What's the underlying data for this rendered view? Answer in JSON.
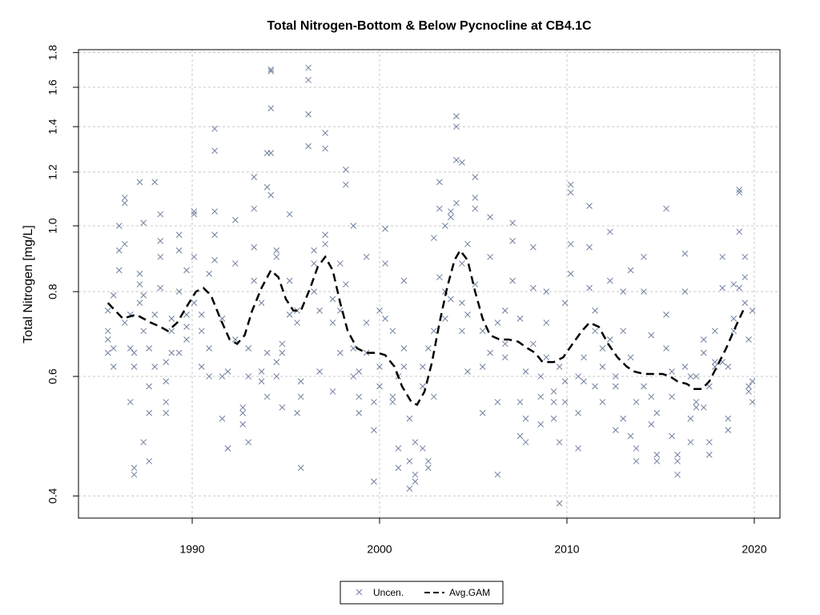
{
  "chart_data": {
    "type": "scatter",
    "title": "Total Nitrogen-Bottom & Below Pycnocline at CB4.1C",
    "ylabel": "Total Nitrogen [mg/L]",
    "log_y": true,
    "grid": true,
    "legend": "bottom",
    "xlim": [
      1983.93,
      2021.37
    ],
    "xticks": [
      1990,
      2000,
      2010,
      2020
    ],
    "ylim": [
      0.371,
      1.818
    ],
    "yticks": [
      0.4,
      0.6,
      0.8,
      {
        "value": 1,
        "label": "1.0"
      },
      1.2,
      1.4,
      1.6,
      1.8
    ],
    "series": [
      {
        "name": "Uncen.",
        "type": "scatter",
        "color": "#6e7f9e",
        "x": [
          1985.5,
          1985.5,
          1985.5,
          1985.5,
          1985.8,
          1985.8,
          1985.8,
          1986.1,
          1986.1,
          1986.1,
          1986.4,
          1986.4,
          1986.4,
          1986.4,
          1986.7,
          1986.7,
          1986.7,
          1986.9,
          1986.9,
          1986.9,
          1986.9,
          1987.2,
          1987.2,
          1987.2,
          1987.2,
          1987.4,
          1987.4,
          1987.4,
          1987.4,
          1987.7,
          1987.7,
          1987.7,
          1987.7,
          1988.0,
          1988.0,
          1988.0,
          1988.3,
          1988.3,
          1988.3,
          1988.3,
          1988.6,
          1988.6,
          1988.6,
          1988.6,
          1988.9,
          1988.9,
          1988.9,
          1989.3,
          1989.3,
          1989.3,
          1989.3,
          1989.7,
          1989.7,
          1989.7,
          1989.7,
          1990.1,
          1990.1,
          1990.1,
          1990.1,
          1990.5,
          1990.5,
          1990.5,
          1990.9,
          1990.9,
          1990.9,
          1991.2,
          1991.2,
          1991.2,
          1991.2,
          1991.2,
          1991.6,
          1991.6,
          1991.6,
          1991.9,
          1991.9,
          1991.9,
          1992.3,
          1992.3,
          1992.3,
          1992.7,
          1992.7,
          1992.7,
          1993.0,
          1993.0,
          1993.0,
          1993.3,
          1993.3,
          1993.3,
          1993.3,
          1993.7,
          1993.7,
          1993.7,
          1994.0,
          1994.0,
          1994.0,
          1994.0,
          1994.2,
          1994.2,
          1994.2,
          1994.2,
          1994.2,
          1994.5,
          1994.5,
          1994.5,
          1994.5,
          1994.8,
          1994.8,
          1994.8,
          1995.2,
          1995.2,
          1995.2,
          1995.6,
          1995.6,
          1995.6,
          1995.8,
          1995.8,
          1995.8,
          1996.2,
          1996.2,
          1996.2,
          1996.2,
          1996.5,
          1996.5,
          1996.5,
          1996.8,
          1996.8,
          1997.1,
          1997.1,
          1997.1,
          1997.1,
          1997.5,
          1997.5,
          1997.5,
          1997.9,
          1997.9,
          1997.9,
          1998.2,
          1998.2,
          1998.2,
          1998.6,
          1998.6,
          1998.6,
          1998.9,
          1998.9,
          1998.9,
          1999.3,
          1999.3,
          1999.3,
          1999.7,
          1999.7,
          1999.7,
          2000.0,
          2000.0,
          2000.0,
          2000.3,
          2000.3,
          2000.3,
          2000.7,
          2000.7,
          2000.7,
          2001.0,
          2001.0,
          2001.0,
          2001.3,
          2001.3,
          2001.3,
          2001.6,
          2001.6,
          2001.6,
          2001.9,
          2001.9,
          2001.9,
          2002.3,
          2002.3,
          2002.3,
          2002.6,
          2002.6,
          2002.6,
          2002.9,
          2002.9,
          2002.9,
          2003.2,
          2003.2,
          2003.2,
          2003.5,
          2003.5,
          2003.5,
          2003.8,
          2003.8,
          2003.8,
          2004.1,
          2004.1,
          2004.1,
          2004.1,
          2004.4,
          2004.4,
          2004.4,
          2004.4,
          2004.7,
          2004.7,
          2004.7,
          2005.1,
          2005.1,
          2005.1,
          2005.1,
          2005.5,
          2005.5,
          2005.5,
          2005.9,
          2005.9,
          2005.9,
          2006.3,
          2006.3,
          2006.3,
          2006.7,
          2006.7,
          2006.7,
          2007.1,
          2007.1,
          2007.1,
          2007.5,
          2007.5,
          2007.5,
          2007.8,
          2007.8,
          2007.8,
          2008.2,
          2008.2,
          2008.2,
          2008.6,
          2008.6,
          2008.6,
          2008.9,
          2008.9,
          2008.9,
          2009.3,
          2009.3,
          2009.3,
          2009.6,
          2009.6,
          2009.6,
          2009.9,
          2009.9,
          2009.9,
          2010.2,
          2010.2,
          2010.2,
          2010.2,
          2010.6,
          2010.6,
          2010.6,
          2010.9,
          2010.9,
          2011.2,
          2011.2,
          2011.2,
          2011.5,
          2011.5,
          2011.5,
          2011.9,
          2011.9,
          2011.9,
          2012.3,
          2012.3,
          2012.3,
          2012.6,
          2012.6,
          2012.6,
          2013.0,
          2013.0,
          2013.0,
          2013.4,
          2013.4,
          2013.4,
          2013.7,
          2013.7,
          2013.7,
          2014.1,
          2014.1,
          2014.1,
          2014.5,
          2014.5,
          2014.5,
          2014.8,
          2014.8,
          2014.8,
          2015.3,
          2015.3,
          2015.3,
          2015.6,
          2015.6,
          2015.6,
          2015.9,
          2015.9,
          2015.9,
          2016.3,
          2016.3,
          2016.3,
          2016.6,
          2016.6,
          2016.6,
          2016.9,
          2016.9,
          2016.9,
          2017.3,
          2017.3,
          2017.3,
          2017.6,
          2017.6,
          2017.6,
          2017.9,
          2017.9,
          2017.9,
          2018.3,
          2018.3,
          2018.3,
          2018.6,
          2018.6,
          2018.6,
          2018.9,
          2018.9,
          2018.9,
          2019.2,
          2019.2,
          2019.2,
          2019.2,
          2019.5,
          2019.5,
          2019.5,
          2019.7,
          2019.7,
          2019.7,
          2019.9,
          2019.9,
          2019.9
        ],
        "values": [
          0.65,
          0.68,
          0.7,
          0.75,
          0.79,
          0.66,
          0.62,
          0.86,
          1.0,
          0.92,
          1.08,
          1.1,
          0.94,
          0.72,
          0.55,
          0.66,
          0.74,
          0.43,
          0.44,
          0.62,
          0.65,
          1.16,
          0.85,
          0.82,
          0.77,
          1.01,
          0.79,
          0.48,
          0.7,
          0.53,
          0.58,
          0.45,
          0.66,
          0.74,
          1.16,
          0.62,
          1.04,
          0.95,
          0.9,
          0.81,
          0.63,
          0.59,
          0.55,
          0.53,
          0.65,
          0.73,
          0.7,
          0.97,
          0.92,
          0.8,
          0.65,
          0.71,
          0.74,
          0.68,
          0.86,
          0.9,
          1.04,
          1.05,
          0.77,
          0.62,
          0.7,
          0.74,
          0.85,
          0.66,
          0.6,
          1.29,
          1.39,
          1.05,
          0.97,
          0.89,
          0.52,
          0.6,
          0.73,
          0.47,
          0.47,
          0.61,
          1.02,
          0.88,
          0.68,
          0.53,
          0.51,
          0.54,
          0.48,
          0.6,
          0.66,
          1.18,
          1.06,
          0.93,
          0.83,
          0.77,
          0.61,
          0.59,
          0.56,
          0.65,
          1.28,
          1.14,
          1.69,
          1.7,
          1.49,
          1.28,
          1.11,
          0.9,
          0.92,
          0.63,
          0.6,
          0.67,
          0.65,
          0.54,
          1.04,
          0.83,
          0.74,
          0.75,
          0.72,
          0.53,
          0.44,
          0.59,
          0.56,
          1.46,
          1.71,
          1.64,
          1.31,
          0.92,
          0.88,
          0.8,
          0.75,
          0.61,
          1.37,
          1.3,
          0.97,
          0.94,
          0.78,
          0.57,
          0.72,
          0.65,
          0.88,
          0.75,
          1.21,
          1.15,
          0.82,
          1.0,
          0.66,
          0.6,
          0.53,
          0.56,
          0.61,
          0.9,
          0.72,
          0.65,
          0.5,
          0.42,
          0.55,
          0.58,
          0.62,
          0.75,
          0.99,
          0.88,
          0.73,
          0.7,
          0.56,
          0.55,
          0.47,
          0.44,
          0.6,
          0.66,
          0.83,
          0.62,
          0.41,
          0.45,
          0.52,
          0.42,
          0.43,
          0.48,
          0.47,
          0.58,
          0.62,
          0.44,
          0.45,
          0.66,
          0.96,
          0.7,
          0.56,
          1.16,
          1.06,
          0.84,
          1.0,
          0.8,
          0.73,
          1.03,
          1.05,
          0.78,
          1.45,
          1.4,
          1.25,
          1.08,
          1.24,
          0.88,
          0.77,
          0.7,
          0.94,
          0.74,
          0.61,
          1.18,
          1.1,
          1.06,
          0.82,
          0.7,
          0.62,
          0.53,
          1.03,
          0.9,
          0.65,
          0.43,
          0.55,
          0.72,
          0.67,
          0.75,
          0.64,
          1.01,
          0.95,
          0.83,
          0.73,
          0.55,
          0.49,
          0.52,
          0.48,
          0.61,
          0.81,
          0.93,
          0.67,
          0.51,
          0.56,
          0.6,
          0.8,
          0.72,
          0.64,
          0.52,
          0.55,
          0.57,
          0.39,
          0.48,
          0.62,
          0.77,
          0.55,
          0.59,
          1.12,
          1.15,
          0.94,
          0.85,
          0.47,
          0.53,
          0.6,
          0.59,
          0.64,
          1.07,
          0.93,
          0.81,
          0.75,
          0.7,
          0.58,
          0.55,
          0.62,
          0.66,
          0.98,
          0.83,
          0.68,
          0.6,
          0.58,
          0.5,
          0.8,
          0.7,
          0.52,
          0.86,
          0.64,
          0.49,
          0.45,
          0.47,
          0.55,
          0.9,
          0.8,
          0.58,
          0.69,
          0.56,
          0.51,
          0.46,
          0.45,
          0.53,
          1.06,
          0.74,
          0.66,
          0.61,
          0.56,
          0.49,
          0.43,
          0.45,
          0.46,
          0.91,
          0.8,
          0.62,
          0.6,
          0.52,
          0.48,
          0.55,
          0.54,
          0.6,
          0.68,
          0.65,
          0.54,
          0.46,
          0.48,
          0.58,
          0.7,
          0.63,
          0.62,
          0.9,
          0.81,
          0.63,
          0.52,
          0.5,
          0.62,
          0.73,
          0.7,
          0.82,
          1.13,
          1.12,
          0.98,
          0.81,
          0.9,
          0.84,
          0.77,
          0.68,
          0.58,
          0.57,
          0.59,
          0.55,
          0.75
        ]
      },
      {
        "name": "Avg.GAM",
        "type": "line",
        "color": "#000000",
        "x": [
          1985.5,
          1986.3,
          1987.0,
          1987.8,
          1988.3,
          1988.7,
          1989.2,
          1989.7,
          1990.2,
          1990.6,
          1991.0,
          1991.5,
          1992.0,
          1992.4,
          1992.8,
          1993.2,
          1993.7,
          1994.2,
          1994.6,
          1995.0,
          1995.4,
          1995.8,
          1996.3,
          1996.7,
          1997.1,
          1997.5,
          1997.9,
          1998.3,
          1998.8,
          1999.3,
          1999.9,
          2000.3,
          2000.8,
          2001.2,
          2001.7,
          2002.0,
          2002.4,
          2002.8,
          2003.2,
          2003.6,
          2004.0,
          2004.3,
          2004.7,
          2005.1,
          2005.5,
          2005.9,
          2006.4,
          2006.9,
          2007.4,
          2007.9,
          2008.3,
          2008.7,
          2009.3,
          2009.8,
          2010.3,
          2010.8,
          2011.2,
          2011.7,
          2012.2,
          2012.7,
          2013.2,
          2013.6,
          2014.1,
          2014.6,
          2015.1,
          2015.5,
          2015.9,
          2016.4,
          2016.8,
          2017.2,
          2017.6,
          2018.0,
          2018.5,
          2019.0,
          2019.5
        ],
        "values": [
          0.77,
          0.73,
          0.74,
          0.72,
          0.71,
          0.7,
          0.72,
          0.76,
          0.8,
          0.81,
          0.79,
          0.73,
          0.68,
          0.67,
          0.69,
          0.75,
          0.81,
          0.86,
          0.84,
          0.78,
          0.75,
          0.75,
          0.81,
          0.87,
          0.9,
          0.86,
          0.77,
          0.7,
          0.66,
          0.65,
          0.65,
          0.645,
          0.62,
          0.58,
          0.55,
          0.545,
          0.57,
          0.63,
          0.72,
          0.81,
          0.89,
          0.92,
          0.89,
          0.8,
          0.73,
          0.69,
          0.68,
          0.68,
          0.675,
          0.66,
          0.65,
          0.63,
          0.63,
          0.64,
          0.67,
          0.7,
          0.72,
          0.71,
          0.67,
          0.64,
          0.62,
          0.61,
          0.605,
          0.605,
          0.605,
          0.6,
          0.59,
          0.585,
          0.575,
          0.575,
          0.59,
          0.62,
          0.66,
          0.71,
          0.76
        ]
      }
    ]
  }
}
